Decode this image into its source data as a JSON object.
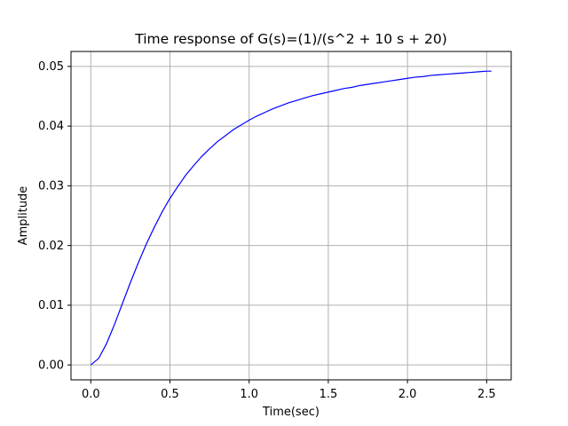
{
  "chart_data": {
    "type": "line",
    "title": "Time response of G(s)=(1)/(s^2 + 10 s + 20)",
    "xlabel": "Time(sec)",
    "ylabel": "Amplitude",
    "xlim": [
      -0.125,
      2.655
    ],
    "ylim": [
      -0.0025,
      0.0525
    ],
    "xticks": [
      0.0,
      0.5,
      1.0,
      1.5,
      2.0,
      2.5
    ],
    "xtick_labels": [
      "0.0",
      "0.5",
      "1.0",
      "1.5",
      "2.0",
      "2.5"
    ],
    "yticks": [
      0.0,
      0.01,
      0.02,
      0.03,
      0.04,
      0.05
    ],
    "ytick_labels": [
      "0.00",
      "0.01",
      "0.02",
      "0.03",
      "0.04",
      "0.05"
    ],
    "grid": true,
    "series": [
      {
        "color": "#0000ff",
        "x": [
          0.0,
          0.05,
          0.1,
          0.15,
          0.2,
          0.25,
          0.3,
          0.35,
          0.4,
          0.45,
          0.5,
          0.55,
          0.6,
          0.65,
          0.7,
          0.75,
          0.8,
          0.85,
          0.9,
          0.95,
          1.0,
          1.05,
          1.1,
          1.15,
          1.2,
          1.25,
          1.3,
          1.35,
          1.4,
          1.45,
          1.5,
          1.55,
          1.6,
          1.65,
          1.7,
          1.75,
          1.8,
          1.85,
          1.9,
          1.95,
          2.0,
          2.05,
          2.1,
          2.15,
          2.2,
          2.25,
          2.3,
          2.35,
          2.4,
          2.45,
          2.5,
          2.53
        ],
        "y": [
          0.0,
          0.0011,
          0.0036,
          0.0068,
          0.0103,
          0.0138,
          0.0171,
          0.0202,
          0.023,
          0.0256,
          0.0279,
          0.0299,
          0.0318,
          0.0334,
          0.0349,
          0.0362,
          0.0374,
          0.0384,
          0.0394,
          0.0402,
          0.041,
          0.0417,
          0.0423,
          0.0429,
          0.0434,
          0.0439,
          0.0443,
          0.0447,
          0.0451,
          0.0454,
          0.0457,
          0.046,
          0.0463,
          0.0465,
          0.0468,
          0.047,
          0.0472,
          0.0474,
          0.0476,
          0.0478,
          0.048,
          0.0482,
          0.0483,
          0.0485,
          0.0486,
          0.0487,
          0.0488,
          0.0489,
          0.049,
          0.0491,
          0.0492,
          0.0492
        ]
      }
    ]
  }
}
